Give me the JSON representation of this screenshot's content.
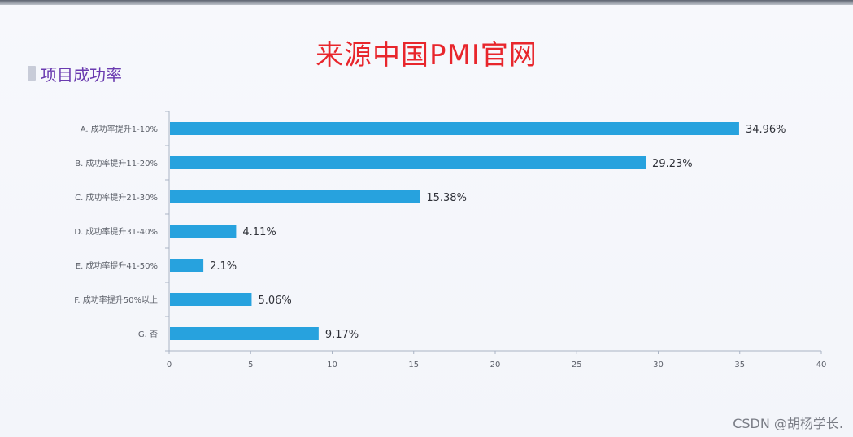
{
  "banner_title": "来源中国PMI官网",
  "credit": "CSDN @胡杨学长.",
  "colors": {
    "bar": "#27a2de",
    "axis": "#aab4c4",
    "banner": "#e8262c",
    "section_title": "#6a3bb0"
  },
  "chart_data": {
    "type": "bar",
    "orientation": "horizontal",
    "title": "项目成功率",
    "categories": [
      "A. 成功率提升1-10%",
      "B. 成功率提升11-20%",
      "C. 成功率提升21-30%",
      "D. 成功率提升31-40%",
      "E. 成功率提升41-50%",
      "F. 成功率提升50%以上",
      "G. 否"
    ],
    "values": [
      34.96,
      29.23,
      15.38,
      4.11,
      2.1,
      5.06,
      9.17
    ],
    "value_labels": [
      "34.96%",
      "29.23%",
      "15.38%",
      "4.11%",
      "2.1%",
      "5.06%",
      "9.17%"
    ],
    "xlim": [
      0,
      40
    ],
    "xticks": [
      0,
      5,
      10,
      15,
      20,
      25,
      30,
      35,
      40
    ],
    "xlabel": "",
    "ylabel": "",
    "grid": false,
    "legend": "none"
  }
}
